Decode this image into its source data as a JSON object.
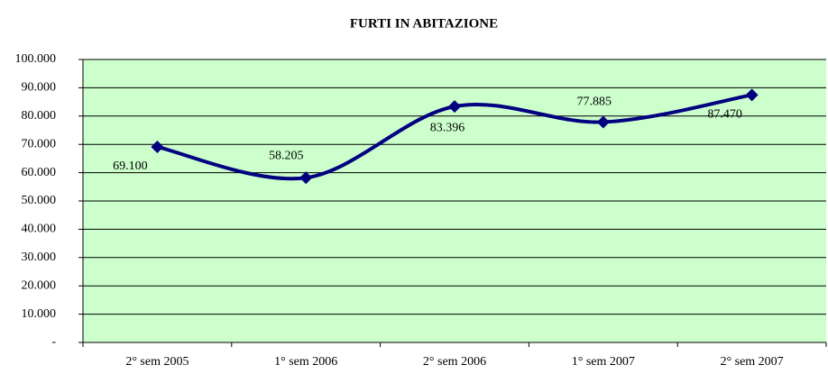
{
  "chart_data": {
    "type": "line",
    "title": "FURTI IN ABITAZIONE",
    "categories": [
      "2° sem 2005",
      "1° sem 2006",
      "2° sem 2006",
      "1° sem 2007",
      "2° sem 2007"
    ],
    "series": [
      {
        "name": "FURTI IN ABITAZIONE",
        "color": "#000080",
        "values": [
          69100,
          58205,
          83396,
          77885,
          87470
        ],
        "value_labels": [
          "69.100",
          "58.205",
          "83.396",
          "77.885",
          "87.470"
        ]
      }
    ],
    "ylim": [
      0,
      100000
    ],
    "yticks": [
      {
        "value": 0,
        "label": "-"
      },
      {
        "value": 10000,
        "label": "10.000"
      },
      {
        "value": 20000,
        "label": "20.000"
      },
      {
        "value": 30000,
        "label": "30.000"
      },
      {
        "value": 40000,
        "label": "40.000"
      },
      {
        "value": 50000,
        "label": "50.000"
      },
      {
        "value": 60000,
        "label": "60.000"
      },
      {
        "value": 70000,
        "label": "70.000"
      },
      {
        "value": 80000,
        "label": "80.000"
      },
      {
        "value": 90000,
        "label": "90.000"
      },
      {
        "value": 100000,
        "label": "100.000"
      }
    ],
    "grid": true,
    "background": "#ccffcc",
    "smooth": true
  }
}
